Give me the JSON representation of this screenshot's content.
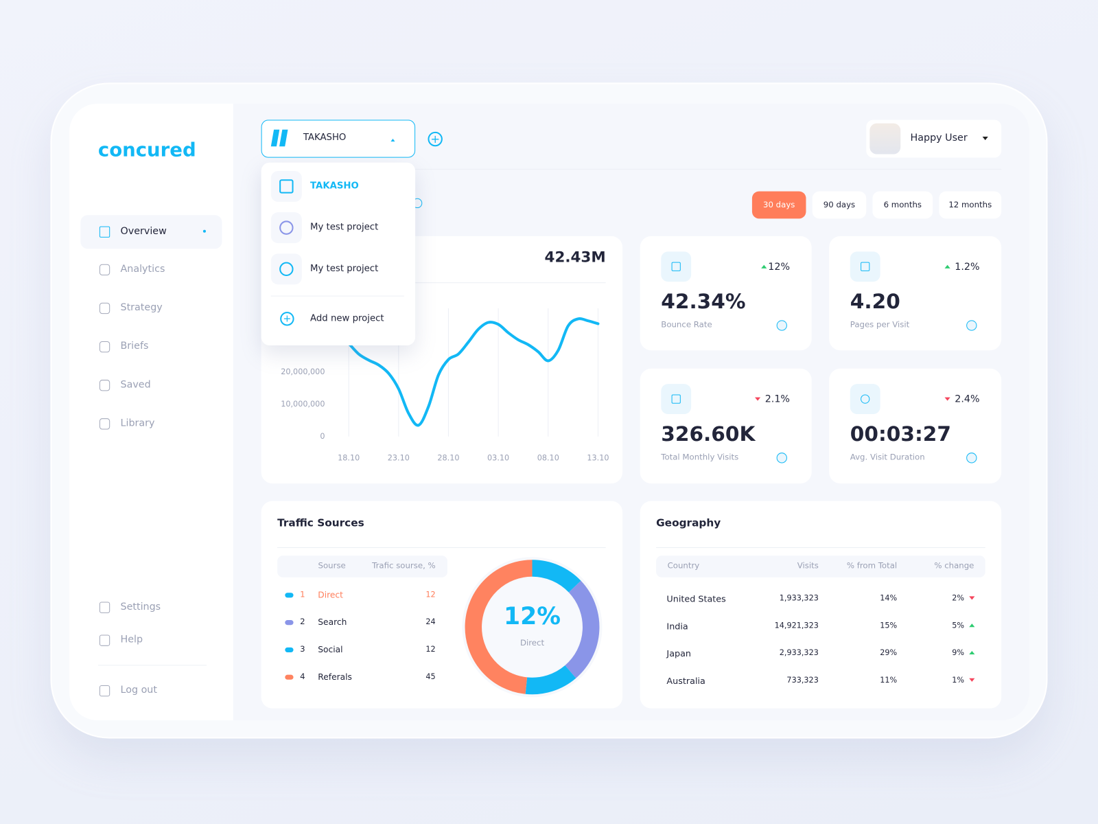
{
  "brand": "concured",
  "nav": [
    "Overview",
    "Analytics",
    "Strategy",
    "Briefs",
    "Saved",
    "Library"
  ],
  "nav_bottom": [
    "Settings",
    "Help",
    "Log out"
  ],
  "project": {
    "selected": "TAKASHO",
    "menu": [
      "TAKASHO",
      "My test project",
      "My test project"
    ],
    "add": "Add new project"
  },
  "user": "Happy User",
  "periods": [
    "30 days",
    "90 days",
    "6 months",
    "12 months"
  ],
  "chart_data": {
    "type": "line",
    "total": "42.43M",
    "categories": [
      "18.10",
      null,
      null,
      null,
      null,
      "23.10",
      null,
      null,
      null,
      null,
      "28.10",
      null,
      null,
      null,
      null,
      "03.10",
      null,
      null,
      null,
      null,
      "08.10",
      null,
      null,
      null,
      null,
      "13.10"
    ],
    "values": [
      28900000,
      25600000,
      23700000,
      22200000,
      19600000,
      14800000,
      7200000,
      3500000,
      9300000,
      19100000,
      23900000,
      25600000,
      29300000,
      33300000,
      35400000,
      34800000,
      32200000,
      30000000,
      28500000,
      26300000,
      23500000,
      26700000,
      34300000,
      36500000,
      35900000,
      35000000
    ],
    "color": "#12b8f5",
    "ylim": [
      0,
      45000000
    ],
    "yticks": [
      0,
      {
        "value": 10000000,
        "label": "10,000,000"
      },
      {
        "value": 20000000,
        "label": "20,000,000"
      }
    ],
    "grid": true
  },
  "kpis": [
    {
      "value": "42.34%",
      "label": "Bounce Rate",
      "change": "12%",
      "trend": "up"
    },
    {
      "value": "4.20",
      "label": "Pages per Visit",
      "change": "1.2%",
      "trend": "up"
    },
    {
      "value": "326.60K",
      "label": "Total Monthly Visits",
      "change": "2.1%",
      "trend": "down"
    },
    {
      "value": "00:03:27",
      "label": "Avg. Visit Duration",
      "change": "2.4%",
      "trend": "down"
    }
  ],
  "traffic": {
    "title": "Traffic Sources",
    "headers": [
      "Sourse",
      "Trafic sourse, %"
    ],
    "rows": [
      {
        "rank": 1,
        "name": "Direct",
        "share": 12,
        "color": "#12b8f5"
      },
      {
        "rank": 2,
        "name": "Search",
        "share": 24,
        "color": "#8a95e8"
      },
      {
        "rank": 3,
        "name": "Social",
        "share": 12,
        "color": "#12b8f5"
      },
      {
        "rank": 4,
        "name": "Referals",
        "share": 45,
        "color": "#ff8360"
      }
    ],
    "center_value": "12%",
    "center_label": "Direct"
  },
  "geography": {
    "title": "Geography",
    "headers": [
      "Country",
      "Visits",
      "% from Total",
      "% change"
    ],
    "rows": [
      [
        "United States",
        "1,933,323",
        "14%",
        "2%"
      ],
      [
        "India",
        "14,921,323",
        "15%",
        "5%"
      ],
      [
        "Japan",
        "2,933,323",
        "29%",
        "9%"
      ],
      [
        "Australia",
        "733,323",
        "11%",
        "1%"
      ]
    ],
    "trends": [
      "down",
      "up",
      "up",
      "down"
    ]
  }
}
